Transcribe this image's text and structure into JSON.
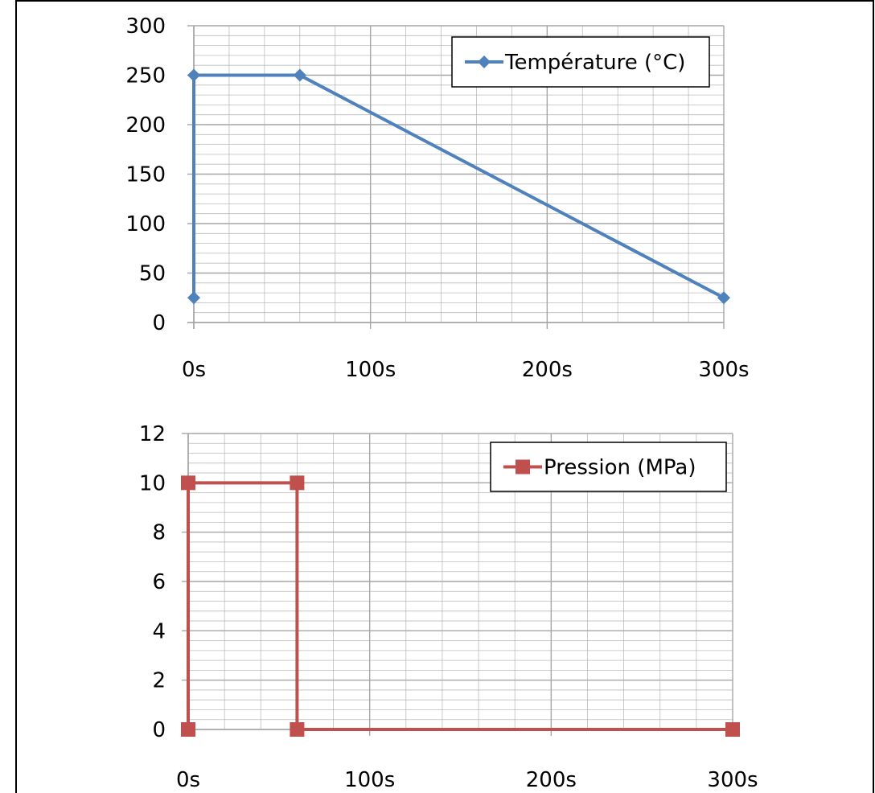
{
  "colors": {
    "grid": "#a6a6a6",
    "axis": "#a6a6a6",
    "border": "#000000",
    "temperature": "#4f81bd",
    "pression": "#c0504d"
  },
  "chart_data": [
    {
      "type": "line",
      "title": "",
      "xlabel": "",
      "ylabel": "",
      "xlim": [
        0,
        300
      ],
      "ylim": [
        0,
        300
      ],
      "x_ticks": [
        "0s",
        "100s",
        "200s",
        "300s"
      ],
      "y_ticks": [
        "0",
        "50",
        "100",
        "150",
        "200",
        "250",
        "300"
      ],
      "grid": true,
      "legend": "top-right",
      "marker": "diamond-icon",
      "series": [
        {
          "name": "Température (°C)",
          "x": [
            0,
            0,
            60,
            300
          ],
          "y": [
            25,
            250,
            250,
            25
          ]
        }
      ]
    },
    {
      "type": "line",
      "title": "",
      "xlabel": "",
      "ylabel": "",
      "xlim": [
        0,
        300
      ],
      "ylim": [
        0,
        12
      ],
      "x_ticks": [
        "0s",
        "100s",
        "200s",
        "300s"
      ],
      "y_ticks": [
        "0",
        "2",
        "4",
        "6",
        "8",
        "10",
        "12"
      ],
      "grid": true,
      "legend": "top-right",
      "marker": "square-icon",
      "series": [
        {
          "name": "Pression (MPa)",
          "x": [
            0,
            0,
            60,
            60,
            300
          ],
          "y": [
            0,
            10,
            10,
            0,
            0
          ]
        }
      ]
    }
  ]
}
